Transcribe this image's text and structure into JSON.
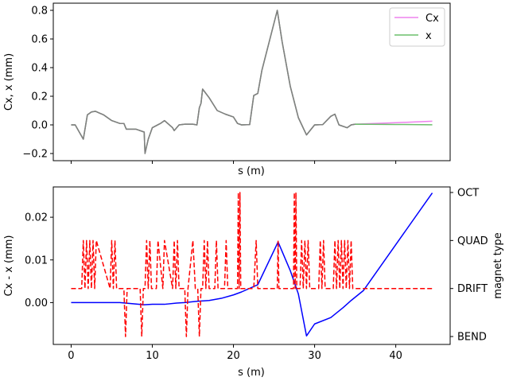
{
  "chart_data": [
    {
      "type": "line",
      "xlabel": "s (m)",
      "ylabel": "Cx, x (mm)",
      "xlim": [
        -2.2,
        46.7
      ],
      "ylim": [
        -0.25,
        0.85
      ],
      "x_ticks": [],
      "y_ticks": [
        -0.2,
        0.0,
        0.2,
        0.4,
        0.6,
        0.8
      ],
      "y_tick_labels": [
        "−0.2",
        "0.0",
        "0.2",
        "0.4",
        "0.6",
        "0.8"
      ],
      "legend": {
        "placement": "top-right"
      },
      "series": [
        {
          "name": "Cx",
          "color": "#ee82ee",
          "points": [
            [
              0,
              0
            ],
            [
              0.5,
              0
            ],
            [
              1.5,
              -0.1
            ],
            [
              2,
              0.07
            ],
            [
              2.5,
              0.09
            ],
            [
              3,
              0.095
            ],
            [
              4,
              0.07
            ],
            [
              5,
              0.03
            ],
            [
              6,
              0.01
            ],
            [
              6.5,
              0.01
            ],
            [
              6.8,
              -0.03
            ],
            [
              8,
              -0.03
            ],
            [
              9,
              -0.05
            ],
            [
              9.1,
              -0.2
            ],
            [
              9.5,
              -0.1
            ],
            [
              10,
              -0.02
            ],
            [
              11,
              0.01
            ],
            [
              11.5,
              0.03
            ],
            [
              12.5,
              -0.02
            ],
            [
              12.7,
              -0.04
            ],
            [
              13.3,
              0
            ],
            [
              14,
              0.005
            ],
            [
              15,
              0.005
            ],
            [
              15.5,
              0
            ],
            [
              15.8,
              0.12
            ],
            [
              16,
              0.15
            ],
            [
              16.2,
              0.25
            ],
            [
              17,
              0.19
            ],
            [
              18,
              0.1
            ],
            [
              19,
              0.075
            ],
            [
              20,
              0.055
            ],
            [
              20.5,
              0.01
            ],
            [
              21,
              0
            ],
            [
              22,
              0.002
            ],
            [
              22.5,
              0.205
            ],
            [
              23,
              0.22
            ],
            [
              23.5,
              0.38
            ],
            [
              25.4,
              0.8
            ],
            [
              26,
              0.58
            ],
            [
              27,
              0.27
            ],
            [
              28,
              0.05
            ],
            [
              29,
              -0.07
            ],
            [
              30,
              0.0
            ],
            [
              31,
              0.002
            ],
            [
              32,
              0.06
            ],
            [
              32.5,
              0.075
            ],
            [
              33,
              0
            ],
            [
              34,
              -0.02
            ],
            [
              34.5,
              0
            ],
            [
              35,
              0.005
            ],
            [
              40,
              0.015
            ],
            [
              44.5,
              0.026
            ]
          ]
        },
        {
          "name": "x",
          "color": "#6cbf6c",
          "points": [
            [
              0,
              0
            ],
            [
              0.5,
              0
            ],
            [
              1.5,
              -0.1
            ],
            [
              2,
              0.07
            ],
            [
              2.5,
              0.09
            ],
            [
              3,
              0.095
            ],
            [
              4,
              0.07
            ],
            [
              5,
              0.03
            ],
            [
              6,
              0.01
            ],
            [
              6.5,
              0.01
            ],
            [
              6.8,
              -0.03
            ],
            [
              8,
              -0.03
            ],
            [
              9,
              -0.05
            ],
            [
              9.1,
              -0.2
            ],
            [
              9.5,
              -0.1
            ],
            [
              10,
              -0.02
            ],
            [
              11,
              0.01
            ],
            [
              11.5,
              0.03
            ],
            [
              12.5,
              -0.02
            ],
            [
              12.7,
              -0.04
            ],
            [
              13.3,
              0
            ],
            [
              14,
              0.005
            ],
            [
              15,
              0.005
            ],
            [
              15.5,
              0
            ],
            [
              15.8,
              0.12
            ],
            [
              16,
              0.15
            ],
            [
              16.2,
              0.25
            ],
            [
              17,
              0.19
            ],
            [
              18,
              0.1
            ],
            [
              19,
              0.075
            ],
            [
              20,
              0.055
            ],
            [
              20.5,
              0.01
            ],
            [
              21,
              0
            ],
            [
              22,
              0.002
            ],
            [
              22.5,
              0.205
            ],
            [
              23,
              0.22
            ],
            [
              23.5,
              0.38
            ],
            [
              25.4,
              0.8
            ],
            [
              26,
              0.58
            ],
            [
              27,
              0.27
            ],
            [
              28,
              0.05
            ],
            [
              29,
              -0.07
            ],
            [
              30,
              0.0
            ],
            [
              31,
              0.002
            ],
            [
              32,
              0.06
            ],
            [
              32.5,
              0.075
            ],
            [
              33,
              0
            ],
            [
              34,
              -0.02
            ],
            [
              34.5,
              0
            ],
            [
              35,
              0.005
            ],
            [
              40,
              0.003
            ],
            [
              44.5,
              0.001
            ]
          ]
        },
        {
          "name": "",
          "color": "#808080",
          "points": [
            [
              0,
              0
            ],
            [
              0.5,
              0
            ],
            [
              1.5,
              -0.1
            ],
            [
              2,
              0.07
            ],
            [
              2.5,
              0.09
            ],
            [
              3,
              0.095
            ],
            [
              4,
              0.07
            ],
            [
              5,
              0.03
            ],
            [
              6,
              0.01
            ],
            [
              6.5,
              0.01
            ],
            [
              6.8,
              -0.03
            ],
            [
              8,
              -0.03
            ],
            [
              9,
              -0.05
            ],
            [
              9.1,
              -0.2
            ],
            [
              9.5,
              -0.1
            ],
            [
              10,
              -0.02
            ],
            [
              11,
              0.01
            ],
            [
              11.5,
              0.03
            ],
            [
              12.5,
              -0.02
            ],
            [
              12.7,
              -0.04
            ],
            [
              13.3,
              0
            ],
            [
              14,
              0.005
            ],
            [
              15,
              0.005
            ],
            [
              15.5,
              0
            ],
            [
              15.8,
              0.12
            ],
            [
              16,
              0.15
            ],
            [
              16.2,
              0.25
            ],
            [
              17,
              0.19
            ],
            [
              18,
              0.1
            ],
            [
              19,
              0.075
            ],
            [
              20,
              0.055
            ],
            [
              20.5,
              0.01
            ],
            [
              21,
              0
            ],
            [
              22,
              0.002
            ],
            [
              22.5,
              0.205
            ],
            [
              23,
              0.22
            ],
            [
              23.5,
              0.38
            ],
            [
              25.4,
              0.8
            ],
            [
              26,
              0.58
            ],
            [
              27,
              0.27
            ],
            [
              28,
              0.05
            ],
            [
              29,
              -0.07
            ],
            [
              30,
              0.0
            ],
            [
              31,
              0.002
            ],
            [
              32,
              0.06
            ],
            [
              32.5,
              0.075
            ],
            [
              33,
              0
            ],
            [
              34,
              -0.02
            ],
            [
              34.5,
              0
            ],
            [
              35,
              0.005
            ]
          ]
        }
      ]
    },
    {
      "type": "line",
      "xlabel": "s (m)",
      "ylabel": "Cx - x (mm)",
      "y2label": "magnet type",
      "xlim": [
        -2.2,
        46.7
      ],
      "ylim": [
        -0.0098,
        0.0271
      ],
      "x_ticks": [
        0,
        10,
        20,
        30,
        40
      ],
      "y_ticks": [
        0.0,
        0.01,
        0.02
      ],
      "y_tick_labels": [
        "0.00",
        "0.01",
        "0.02"
      ],
      "y2_ticks": [
        "BEND",
        "DRIFT",
        "QUAD",
        "OCT"
      ],
      "y2_values": [
        -1,
        0,
        1,
        2
      ],
      "series": [
        {
          "name": "",
          "color": "#0000ff",
          "axis": "left",
          "points": [
            [
              0,
              0
            ],
            [
              6,
              0
            ],
            [
              9,
              -0.0005
            ],
            [
              10,
              -0.0004
            ],
            [
              11.5,
              -0.0004
            ],
            [
              13,
              -0.0001
            ],
            [
              14,
              0
            ],
            [
              15.5,
              0.0003
            ],
            [
              17,
              0.0005
            ],
            [
              18.5,
              0.001
            ],
            [
              20,
              0.0018
            ],
            [
              21,
              0.0025
            ],
            [
              23,
              0.0042
            ],
            [
              25.5,
              0.0142
            ],
            [
              27,
              0.0075
            ],
            [
              28,
              0.002
            ],
            [
              29,
              -0.0078
            ],
            [
              30,
              -0.005
            ],
            [
              32,
              -0.0035
            ],
            [
              33.5,
              -0.0012
            ],
            [
              34.5,
              0.0005
            ],
            [
              36,
              0.0028
            ],
            [
              44.5,
              0.0257
            ]
          ]
        },
        {
          "name": "",
          "color": "#ff0000",
          "dashed": true,
          "axis": "right",
          "points": [
            [
              0,
              0
            ],
            [
              1.3,
              0
            ],
            [
              1.5,
              1
            ],
            [
              1.7,
              0
            ],
            [
              1.9,
              1
            ],
            [
              2.1,
              0
            ],
            [
              2.3,
              1
            ],
            [
              2.5,
              0
            ],
            [
              2.7,
              1
            ],
            [
              2.9,
              0
            ],
            [
              3.1,
              1
            ],
            [
              4.8,
              0
            ],
            [
              5.0,
              1
            ],
            [
              5.2,
              0
            ],
            [
              5.4,
              1
            ],
            [
              5.6,
              0
            ],
            [
              6.5,
              0
            ],
            [
              6.7,
              -1
            ],
            [
              6.9,
              0
            ],
            [
              8.5,
              0
            ],
            [
              8.7,
              -1
            ],
            [
              8.9,
              0
            ],
            [
              9.1,
              0
            ],
            [
              9.3,
              1
            ],
            [
              9.5,
              0
            ],
            [
              9.7,
              1
            ],
            [
              9.9,
              0
            ],
            [
              10.5,
              0
            ],
            [
              10.7,
              1
            ],
            [
              11.3,
              0
            ],
            [
              11.5,
              1
            ],
            [
              12.5,
              0
            ],
            [
              12.7,
              1
            ],
            [
              12.9,
              0
            ],
            [
              13.1,
              1
            ],
            [
              13.3,
              0
            ],
            [
              14.0,
              0
            ],
            [
              14.2,
              -1
            ],
            [
              14.4,
              0
            ],
            [
              15.0,
              1
            ],
            [
              15.3,
              0
            ],
            [
              15.6,
              0
            ],
            [
              15.8,
              -1
            ],
            [
              16.0,
              0
            ],
            [
              16.2,
              0
            ],
            [
              16.4,
              1
            ],
            [
              16.6,
              0
            ],
            [
              16.8,
              1
            ],
            [
              17.0,
              0
            ],
            [
              17.7,
              0
            ],
            [
              17.9,
              1
            ],
            [
              18.1,
              0
            ],
            [
              18.9,
              0
            ],
            [
              19.1,
              1
            ],
            [
              19.3,
              0
            ],
            [
              20.5,
              0
            ],
            [
              20.6,
              2
            ],
            [
              20.7,
              0
            ],
            [
              20.8,
              2
            ],
            [
              20.9,
              0
            ],
            [
              22.5,
              0
            ],
            [
              22.8,
              1
            ],
            [
              23.0,
              0
            ],
            [
              25.4,
              0
            ],
            [
              25.5,
              1
            ],
            [
              25.6,
              0
            ],
            [
              27.4,
              0
            ],
            [
              27.5,
              2
            ],
            [
              27.6,
              0
            ],
            [
              27.7,
              2
            ],
            [
              27.8,
              0
            ],
            [
              28.2,
              0
            ],
            [
              28.4,
              1
            ],
            [
              28.6,
              0
            ],
            [
              28.8,
              1
            ],
            [
              29.0,
              0
            ],
            [
              29.2,
              1
            ],
            [
              29.4,
              0
            ],
            [
              30.5,
              0
            ],
            [
              30.7,
              1
            ],
            [
              30.9,
              0
            ],
            [
              31.1,
              1
            ],
            [
              31.3,
              0
            ],
            [
              32.3,
              0
            ],
            [
              32.5,
              1
            ],
            [
              32.7,
              0
            ],
            [
              32.9,
              1
            ],
            [
              33.1,
              0
            ],
            [
              33.3,
              1
            ],
            [
              33.5,
              0
            ],
            [
              33.7,
              1
            ],
            [
              33.9,
              0
            ],
            [
              34.1,
              1
            ],
            [
              34.3,
              0
            ],
            [
              34.5,
              1
            ],
            [
              34.7,
              0
            ],
            [
              44.5,
              0
            ]
          ]
        }
      ]
    }
  ]
}
